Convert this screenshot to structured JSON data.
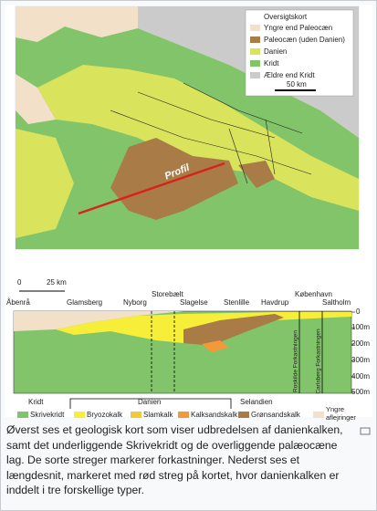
{
  "map": {
    "legend_title": "Oversigtskort",
    "legend": [
      "Yngre end Paleocæn",
      "Paleocæn (uden Danien)",
      "Danien",
      "Kridt",
      "Ældre end Kridt"
    ],
    "scale": "50 km",
    "profile": "Profil"
  },
  "section": {
    "scale": [
      0,
      "25 km"
    ],
    "places": [
      "Åbenrå",
      "Glamsberg",
      "Nyborg",
      "Storebælt",
      "Slagelse",
      "Stenlille",
      "Havdrup",
      "København",
      "Saltholm"
    ],
    "depths": [
      0,
      "100m",
      "200m",
      "300m",
      "400m",
      "500m"
    ],
    "faults": [
      "Roskilde Forkastningen",
      "Carlsberg Forkastningen"
    ],
    "groups": [
      "Kridt",
      "Danien",
      "Selandien"
    ],
    "legend": [
      "Skrivekridt",
      "Bryozokalk",
      "Slamkalk",
      "Kalksandskalk",
      "Grønsandskalk",
      "Yngre aflejringer"
    ]
  },
  "caption": "Øverst ses et geologisk kort som viser udbredelsen af danienkalken, samt det underliggende Skrivekridt og de overliggende palæocæne lag. De sorte streger markerer forkastninger. Nederst ses et længdesnit, markeret med rød streg på kortet, hvor danienkalken er inddelt i tre forskellige typer."
}
